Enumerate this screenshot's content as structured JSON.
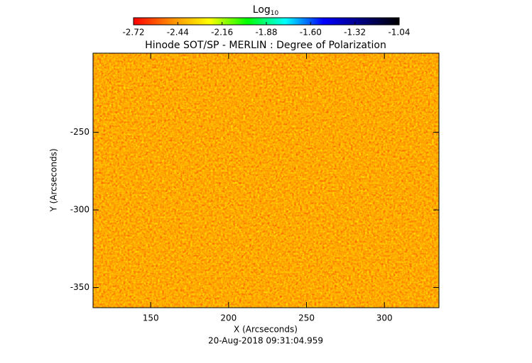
{
  "chart_data": {
    "type": "image",
    "title": "Hinode SOT/SP - MERLIN : Degree of Polarization",
    "x_label": "X (Arcseconds)",
    "y_label": "Y (Arcseconds)",
    "footer": "20-Aug-2018 09:31:04.959",
    "xlim": [
      113,
      335
    ],
    "xticks": [
      150,
      200,
      250,
      300
    ],
    "ylim": [
      -363,
      -199
    ],
    "yticks": [
      -350,
      -300,
      -250
    ],
    "colorbar": {
      "label": "Log",
      "label_sub": "10",
      "lim": [
        -2.72,
        -1.04
      ],
      "ticks": [
        -2.72,
        -2.44,
        -2.16,
        -1.88,
        -1.6,
        -1.32,
        -1.04
      ],
      "tick_labels": [
        "-2.72",
        "-2.44",
        "-2.16",
        "-1.88",
        "-1.60",
        "-1.32",
        "-1.04"
      ],
      "colormap": [
        "#ff0000",
        "#ff8c00",
        "#ffff00",
        "#00ff00",
        "#00ffff",
        "#0000ff",
        "#000080",
        "#000000"
      ]
    }
  }
}
